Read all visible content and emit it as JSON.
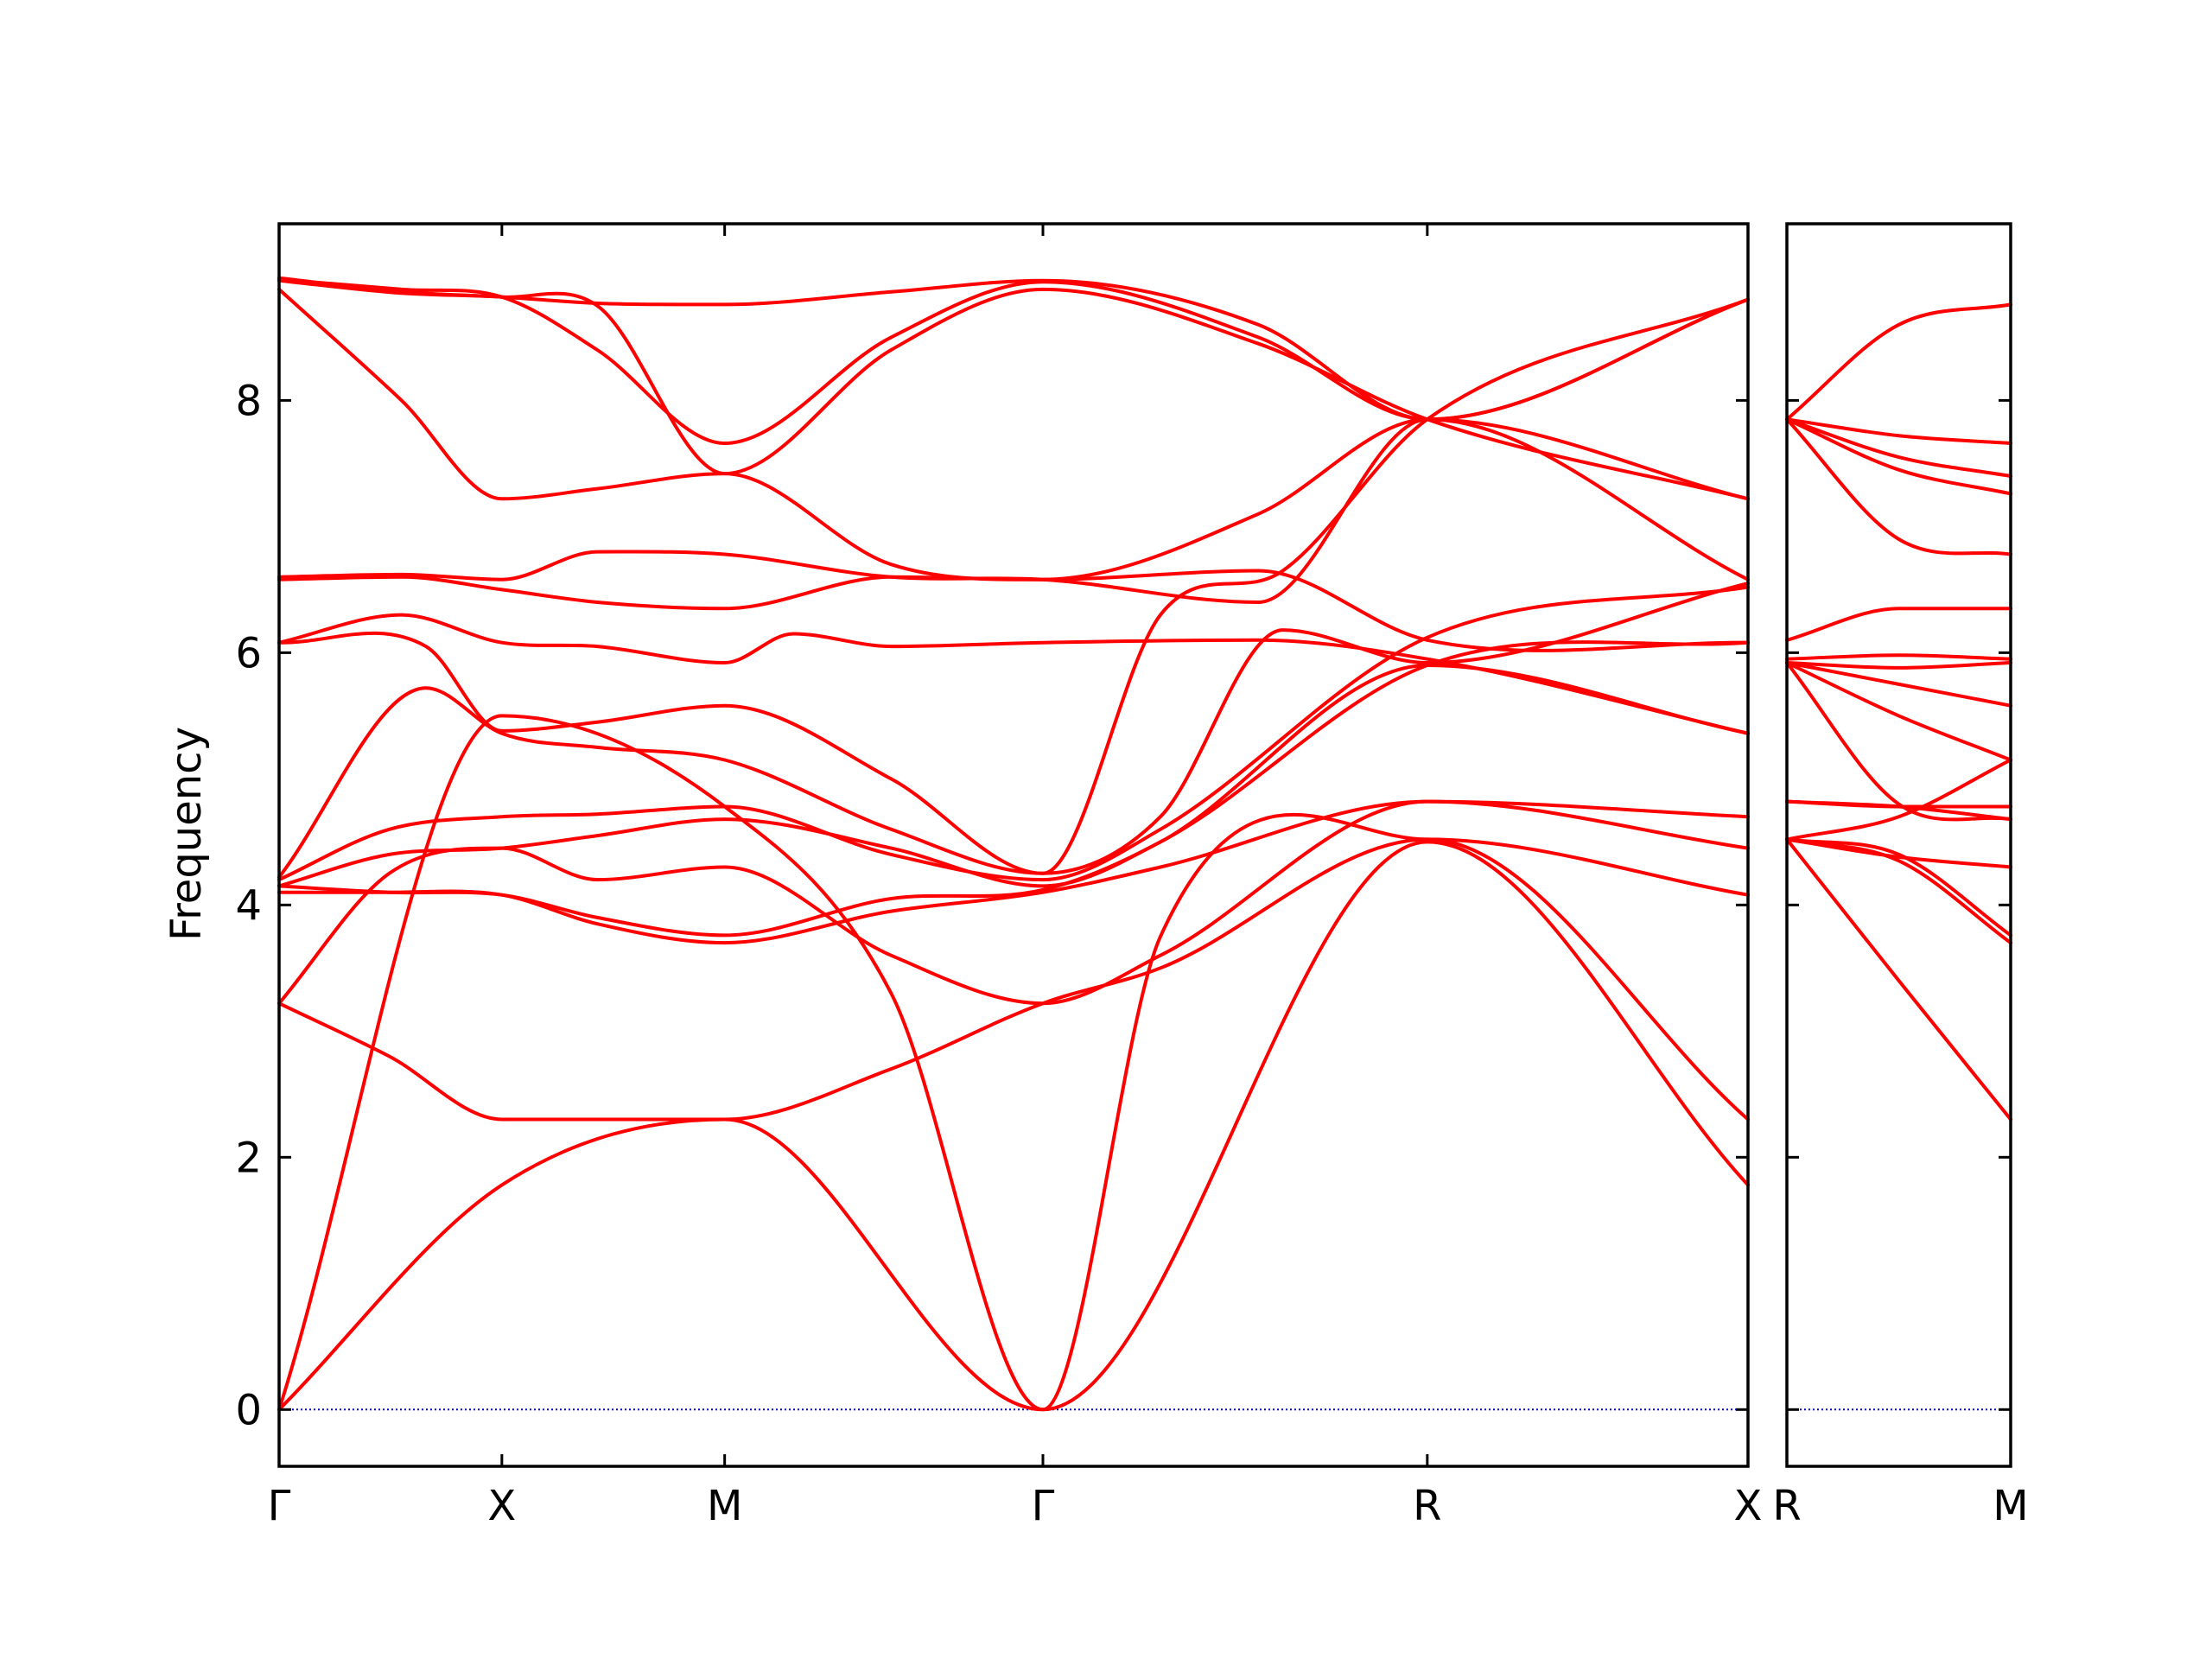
{
  "chart_data": {
    "type": "line",
    "ylabel": "Frequency",
    "ylim": [
      -0.45,
      9.4
    ],
    "yticks": [
      0,
      2,
      4,
      6,
      8
    ],
    "grid": false,
    "legend": "none",
    "line_color": "#ff0000",
    "zero_line_color": "#0000cc",
    "panels": [
      {
        "name": "main",
        "xlim": [
          0,
          6.0
        ],
        "ticks": [
          {
            "x": 0,
            "label": "Γ"
          },
          {
            "x": 0.91,
            "label": "X"
          },
          {
            "x": 1.82,
            "label": "M"
          },
          {
            "x": 3.12,
            "label": "Γ"
          },
          {
            "x": 4.69,
            "label": "R"
          },
          {
            "x": 6.0,
            "label": "X"
          }
        ],
        "bands": [
          {
            "x": [
              0,
              0.91,
              1.82,
              3.12,
              4.69,
              6.0
            ],
            "y": [
              0,
              1.78,
              2.3,
              0,
              4.5,
              1.78
            ]
          },
          {
            "x": [
              0,
              0.91,
              1.82,
              2.5,
              3.12,
              3.6,
              4.69,
              6.0
            ],
            "y": [
              0,
              5.5,
              4.78,
              3.3,
              0,
              3.75,
              4.52,
              2.3
            ]
          },
          {
            "x": [
              0,
              0.45,
              0.91,
              1.3,
              1.82,
              2.5,
              3.12,
              3.6,
              4.69,
              6.0
            ],
            "y": [
              3.22,
              2.8,
              2.3,
              2.3,
              2.3,
              2.7,
              3.22,
              3.5,
              4.52,
              4.08
            ]
          },
          {
            "x": [
              0,
              0.45,
              0.91,
              1.3,
              1.82,
              2.5,
              3.12,
              3.6,
              4.69,
              6.0
            ],
            "y": [
              3.22,
              4.25,
              4.45,
              4.2,
              4.3,
              3.6,
              3.22,
              3.6,
              4.82,
              4.45
            ]
          },
          {
            "x": [
              0,
              0.45,
              0.91,
              1.3,
              1.82,
              2.5,
              3.12,
              3.6,
              4.69,
              6.0
            ],
            "y": [
              4.1,
              4.1,
              4.08,
              3.85,
              3.7,
              3.95,
              4.1,
              4.3,
              4.82,
              4.7
            ]
          },
          {
            "x": [
              0,
              0.45,
              0.91,
              1.3,
              1.82,
              2.5,
              3.12,
              3.6,
              4.69,
              6.0
            ],
            "y": [
              4.15,
              4.1,
              4.08,
              3.9,
              3.76,
              4.05,
              4.12,
              4.5,
              5.9,
              5.36
            ]
          },
          {
            "x": [
              0,
              0.45,
              0.91,
              1.3,
              1.82,
              2.5,
              3.12,
              3.6,
              4.69,
              6.0
            ],
            "y": [
              4.15,
              4.4,
              4.45,
              4.55,
              4.68,
              4.45,
              4.15,
              4.5,
              5.9,
              6.08
            ]
          },
          {
            "x": [
              0,
              0.45,
              0.91,
              1.3,
              1.82,
              2.5,
              3.12,
              3.6,
              4.69,
              6.0
            ],
            "y": [
              4.2,
              4.6,
              4.7,
              4.72,
              4.78,
              4.4,
              4.2,
              4.6,
              6.12,
              6.52
            ]
          },
          {
            "x": [
              0,
              0.6,
              0.91,
              1.3,
              1.82,
              2.5,
              3.12,
              3.6,
              4.1,
              4.69,
              6.0
            ],
            "y": [
              4.22,
              5.72,
              5.36,
              5.25,
              5.15,
              4.6,
              4.25,
              4.7,
              6.18,
              5.92,
              6.55
            ]
          },
          {
            "x": [
              0,
              0.6,
              0.91,
              1.3,
              1.82,
              2.5,
              3.12,
              3.6,
              4.1,
              4.69,
              6.0
            ],
            "y": [
              6.08,
              6.05,
              5.38,
              5.45,
              5.58,
              5.0,
              4.25,
              6.3,
              6.65,
              7.85,
              8.8
            ]
          },
          {
            "x": [
              0,
              0.5,
              0.91,
              1.3,
              1.82,
              2.1,
              2.5,
              3.12,
              4.0,
              4.69,
              6.0
            ],
            "y": [
              6.08,
              6.3,
              6.08,
              6.05,
              5.92,
              6.15,
              6.05,
              6.08,
              6.1,
              5.95,
              5.36
            ]
          },
          {
            "x": [
              0,
              0.5,
              0.91,
              1.3,
              1.82,
              2.5,
              3.12,
              4.0,
              4.69,
              6.0
            ],
            "y": [
              6.58,
              6.6,
              6.5,
              6.4,
              6.35,
              6.6,
              6.58,
              6.65,
              6.1,
              6.08
            ]
          },
          {
            "x": [
              0,
              0.5,
              0.91,
              1.3,
              1.82,
              2.5,
              3.12,
              4.0,
              4.69,
              6.0
            ],
            "y": [
              6.6,
              6.62,
              6.58,
              6.8,
              6.78,
              6.6,
              6.58,
              6.4,
              7.85,
              6.58
            ]
          },
          {
            "x": [
              0,
              0.5,
              0.91,
              1.3,
              1.82,
              2.5,
              3.12,
              4.0,
              4.69,
              6.0
            ],
            "y": [
              8.88,
              8.0,
              7.22,
              7.3,
              7.42,
              6.7,
              6.58,
              7.1,
              7.85,
              7.22
            ]
          },
          {
            "x": [
              0,
              0.5,
              0.91,
              1.3,
              1.82,
              2.5,
              3.12,
              4.0,
              4.69,
              6.0
            ],
            "y": [
              8.95,
              8.85,
              8.82,
              8.75,
              7.42,
              8.4,
              8.88,
              8.45,
              7.85,
              7.22
            ]
          },
          {
            "x": [
              0,
              0.5,
              0.91,
              1.3,
              1.82,
              2.5,
              3.12,
              4.0,
              4.69,
              6.0
            ],
            "y": [
              8.96,
              8.88,
              8.82,
              8.4,
              7.66,
              8.5,
              8.94,
              8.5,
              7.85,
              8.8
            ]
          },
          {
            "x": [
              0,
              0.5,
              0.91,
              1.3,
              1.82,
              2.5,
              3.12,
              4.0,
              4.69,
              6.0
            ],
            "y": [
              8.97,
              8.86,
              8.82,
              8.77,
              8.76,
              8.86,
              8.95,
              8.6,
              7.85,
              8.8
            ]
          }
        ]
      },
      {
        "name": "right",
        "xlim": [
          0,
          1.0
        ],
        "ticks": [
          {
            "x": 0,
            "label": "R"
          },
          {
            "x": 1.0,
            "label": "M"
          }
        ],
        "bands": [
          {
            "x": [
              0,
              0.5,
              1.0
            ],
            "y": [
              4.52,
              3.4,
              2.3
            ]
          },
          {
            "x": [
              0,
              0.5,
              1.0
            ],
            "y": [
              4.52,
              4.35,
              3.7
            ]
          },
          {
            "x": [
              0,
              0.5,
              1.0
            ],
            "y": [
              4.52,
              4.4,
              3.76
            ]
          },
          {
            "x": [
              0,
              0.5,
              1.0
            ],
            "y": [
              4.52,
              4.38,
              4.3
            ]
          },
          {
            "x": [
              0,
              0.5,
              1.0
            ],
            "y": [
              4.52,
              4.7,
              5.15
            ]
          },
          {
            "x": [
              0,
              0.5,
              1.0
            ],
            "y": [
              4.82,
              4.78,
              4.68
            ]
          },
          {
            "x": [
              0,
              0.5,
              1.0
            ],
            "y": [
              4.82,
              4.78,
              4.78
            ]
          },
          {
            "x": [
              0,
              0.5,
              1.0
            ],
            "y": [
              5.92,
              4.8,
              4.68
            ]
          },
          {
            "x": [
              0,
              0.5,
              1.0
            ],
            "y": [
              5.92,
              5.5,
              5.15
            ]
          },
          {
            "x": [
              0,
              0.5,
              1.0
            ],
            "y": [
              5.92,
              5.75,
              5.58
            ]
          },
          {
            "x": [
              0,
              0.5,
              1.0
            ],
            "y": [
              5.92,
              5.88,
              5.92
            ]
          },
          {
            "x": [
              0,
              0.5,
              1.0
            ],
            "y": [
              5.95,
              5.98,
              5.95
            ]
          },
          {
            "x": [
              0,
              0.5,
              1.0
            ],
            "y": [
              6.1,
              6.35,
              6.35
            ]
          },
          {
            "x": [
              0,
              0.5,
              1.0
            ],
            "y": [
              7.85,
              6.9,
              6.78
            ]
          },
          {
            "x": [
              0,
              0.5,
              1.0
            ],
            "y": [
              7.85,
              7.45,
              7.26
            ]
          },
          {
            "x": [
              0,
              0.5,
              1.0
            ],
            "y": [
              7.85,
              7.55,
              7.4
            ]
          },
          {
            "x": [
              0,
              0.5,
              1.0
            ],
            "y": [
              7.85,
              7.72,
              7.66
            ]
          },
          {
            "x": [
              0,
              0.5,
              1.0
            ],
            "y": [
              7.85,
              8.6,
              8.76
            ]
          }
        ]
      }
    ]
  }
}
